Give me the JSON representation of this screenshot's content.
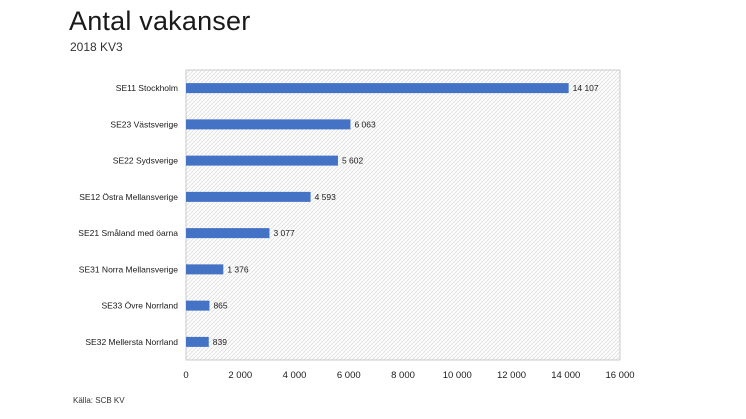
{
  "title": "Antal vakanser",
  "subtitle": "2018 KV3",
  "source": "Källa: SCB KV",
  "colors": {
    "bar": "#4472c4",
    "grid_pattern": "#d0d0d0",
    "frame": "#bfbfbf"
  },
  "chart_data": {
    "type": "bar",
    "orientation": "horizontal",
    "categories": [
      "SE11 Stockholm",
      "SE23 Västsverige",
      "SE22 Sydsverige",
      "SE12 Östra Mellansverige",
      "SE21 Småland med öarna",
      "SE31 Norra Mellansverige",
      "SE33 Övre Norrland",
      "SE32 Mellersta Norrland"
    ],
    "values": [
      14107,
      6063,
      5602,
      4593,
      3077,
      1376,
      865,
      839
    ],
    "value_labels": [
      "14 107",
      "6 063",
      "5 602",
      "4 593",
      "3 077",
      "1 376",
      "865",
      "839"
    ],
    "xlim": [
      0,
      16000
    ],
    "x_ticks": [
      0,
      2000,
      4000,
      6000,
      8000,
      10000,
      12000,
      14000,
      16000
    ],
    "x_tick_labels": [
      "0",
      "2 000",
      "4 000",
      "6 000",
      "8 000",
      "10 000",
      "12 000",
      "14 000",
      "16 000"
    ],
    "grid": "hatched plot area"
  }
}
